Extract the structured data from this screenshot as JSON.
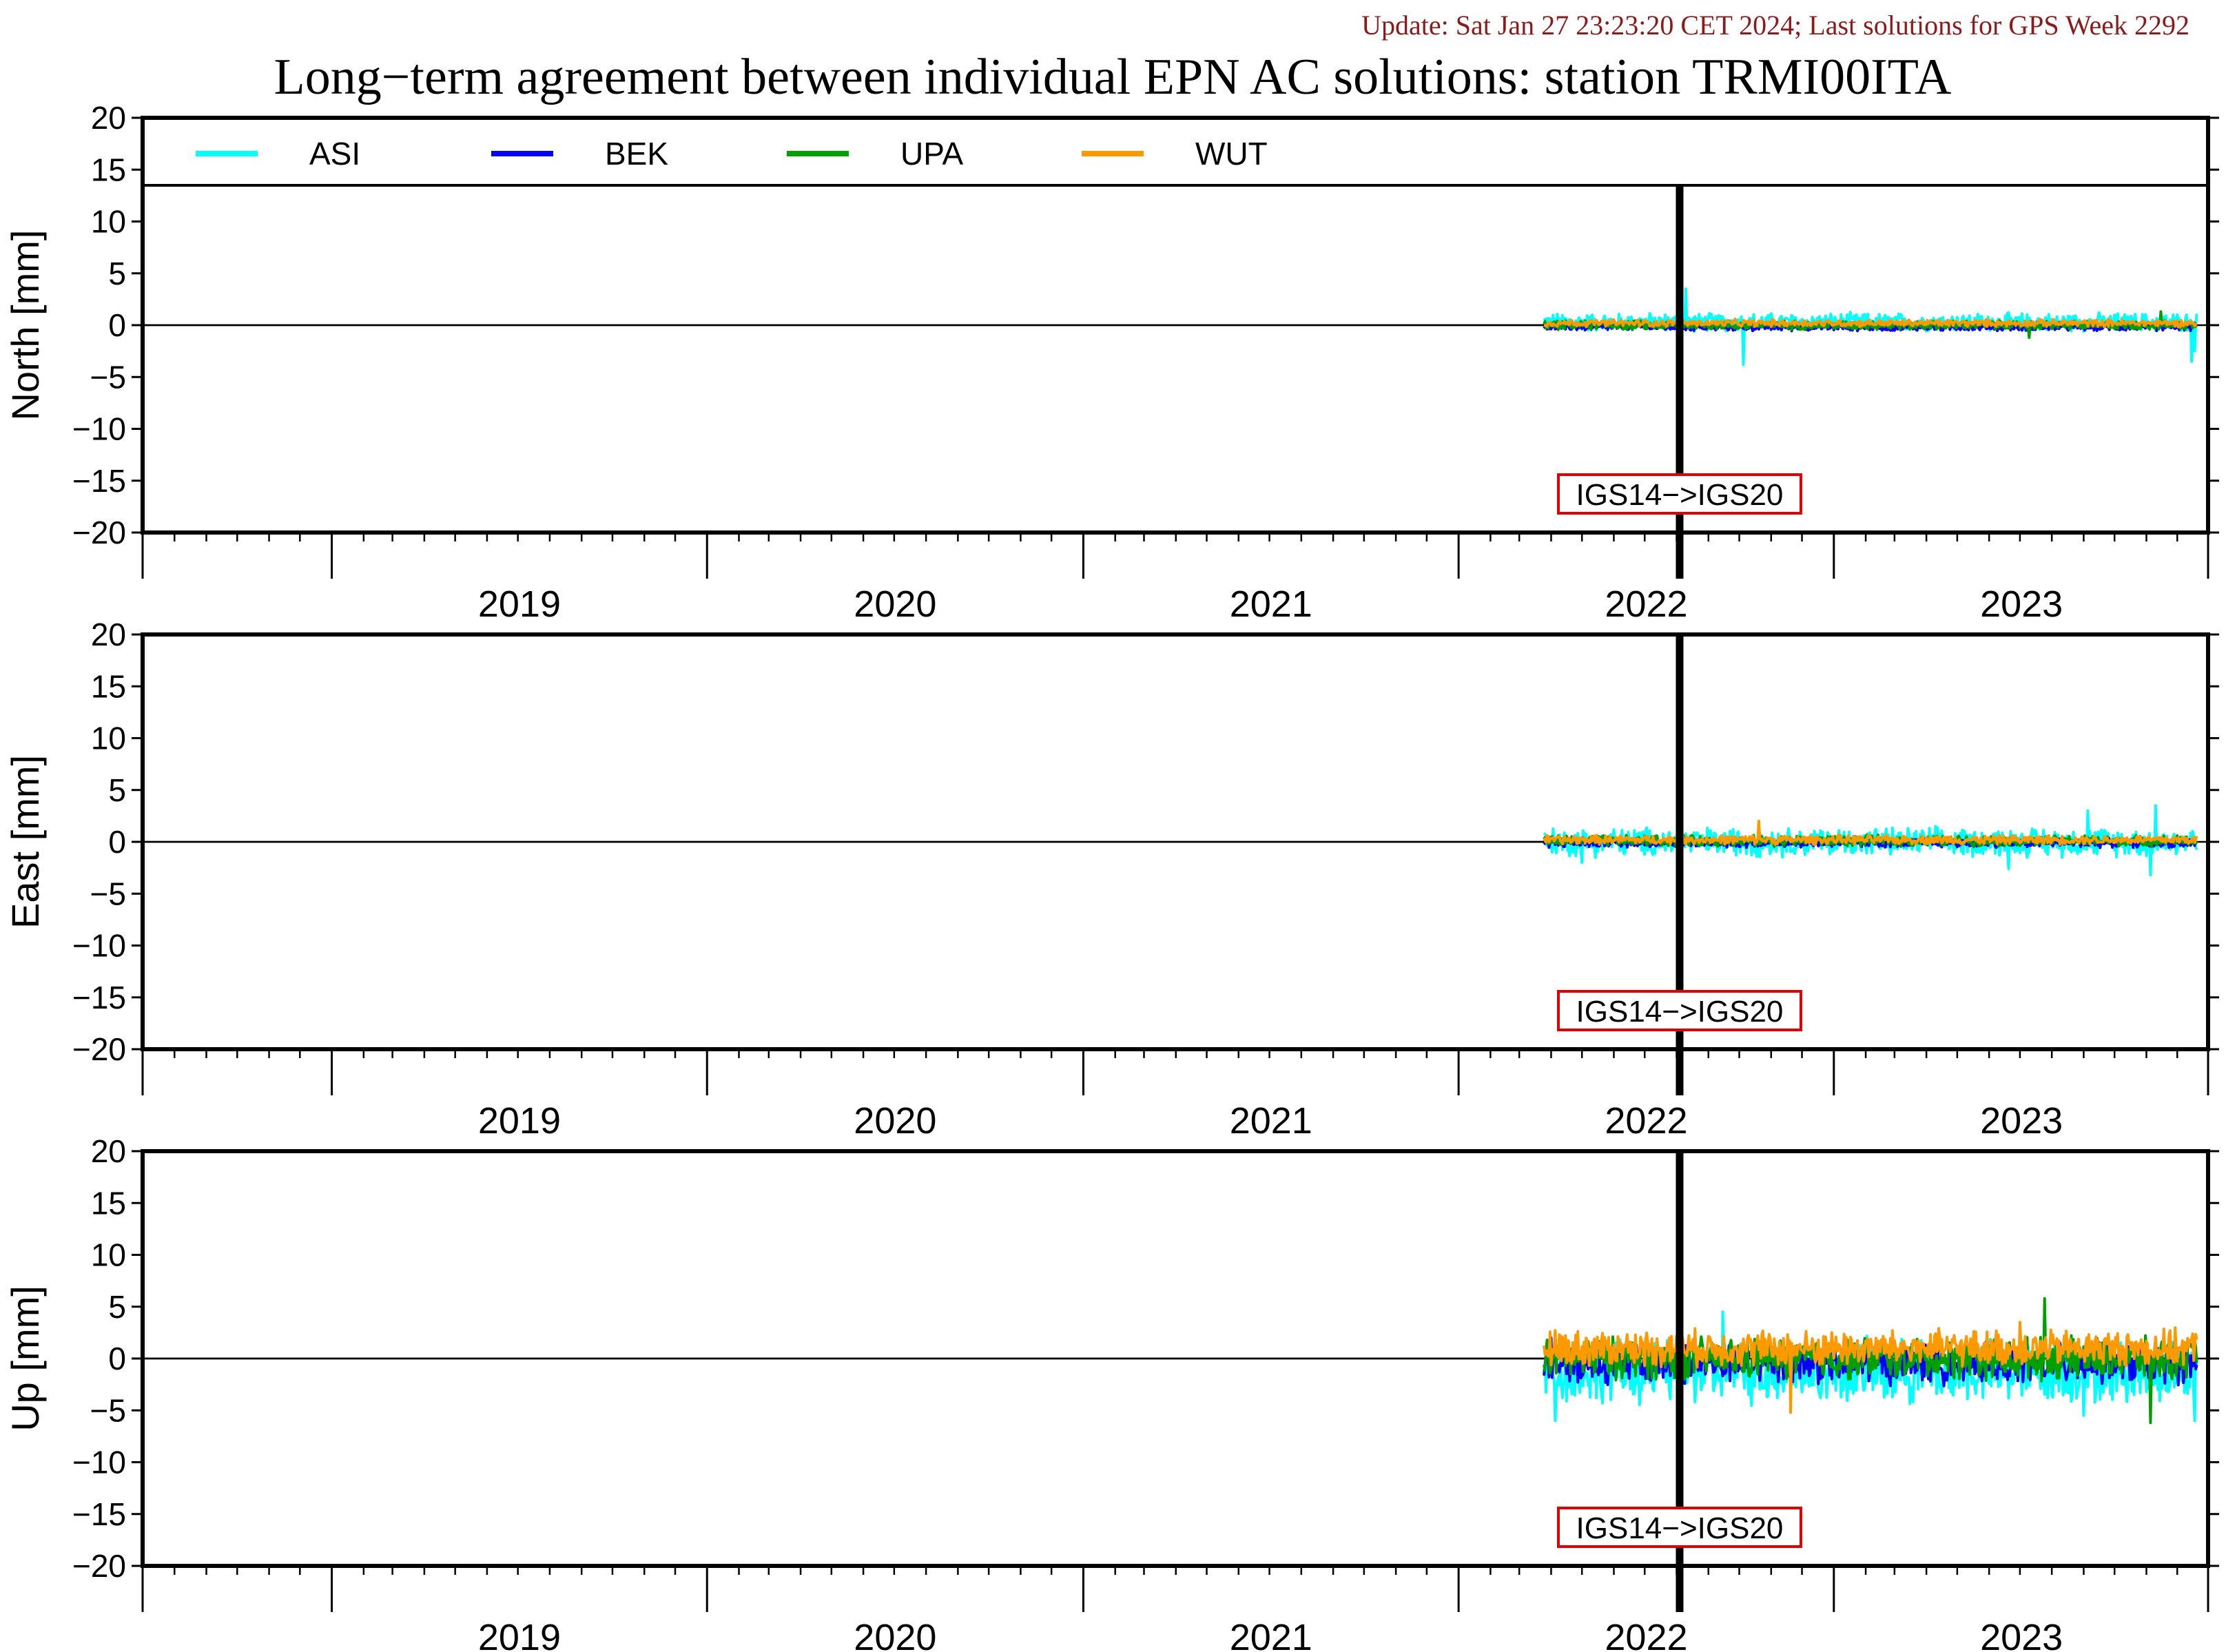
{
  "header": {
    "update_text": "Update: Sat Jan 27 23:23:20 CET 2024; Last solutions for GPS Week 2292",
    "title": "Long−term agreement between individual EPN AC solutions: station TRMI00ITA"
  },
  "colors": {
    "ASI": "#00ffff",
    "BEK": "#0000ff",
    "UPA": "#00a000",
    "WUT": "#ff9900",
    "update_text": "#8b1a1a",
    "annotation_box": "#e00000"
  },
  "chart_data": {
    "type": "line",
    "x_axis": {
      "type": "date",
      "range": [
        "2018-07-01",
        "2023-12-31"
      ],
      "year_labels": [
        "2019",
        "2020",
        "2021",
        "2022",
        "2023"
      ]
    },
    "y_range": [
      -20,
      20
    ],
    "y_ticks": [
      20,
      15,
      10,
      5,
      0,
      -5,
      -10,
      -15,
      -20
    ],
    "y_tick_labels": [
      "20",
      "15",
      "10",
      "5",
      "0",
      "−5",
      "−10",
      "−15",
      "−20"
    ],
    "legend": {
      "placement": "top",
      "entries": [
        "ASI",
        "BEK",
        "UPA",
        "WUT"
      ]
    },
    "series_start": "2022-03-25",
    "series_end": "2023-12-20",
    "annotation": {
      "label": "IGS14−>IGS20",
      "date": "2022-08-04"
    },
    "panels": [
      {
        "ylabel": "North [mm]",
        "series": [
          {
            "name": "ASI",
            "amplitude": 1.0,
            "offset": 0.3,
            "spikes": [
              [
                "2022-08-10",
                3.5
              ],
              [
                "2022-10-05",
                -3.8
              ],
              [
                "2023-12-15",
                -3.5
              ],
              [
                "2023-12-18",
                -2.5
              ]
            ]
          },
          {
            "name": "BEK",
            "amplitude": 0.4,
            "offset": -0.2,
            "spikes": []
          },
          {
            "name": "UPA",
            "amplitude": 0.5,
            "offset": 0.0,
            "spikes": [
              [
                "2023-07-10",
                -1.2
              ],
              [
                "2023-11-15",
                1.3
              ]
            ]
          },
          {
            "name": "WUT",
            "amplitude": 0.4,
            "offset": 0.2,
            "spikes": []
          }
        ]
      },
      {
        "ylabel": "East [mm]",
        "series": [
          {
            "name": "ASI",
            "amplitude": 1.6,
            "offset": 0.0,
            "spikes": [
              [
                "2023-11-10",
                3.5
              ],
              [
                "2023-11-05",
                -3.2
              ],
              [
                "2023-09-05",
                3.0
              ],
              [
                "2022-05-01",
                -2.0
              ],
              [
                "2023-06-20",
                -2.6
              ]
            ]
          },
          {
            "name": "BEK",
            "amplitude": 0.5,
            "offset": -0.1,
            "spikes": []
          },
          {
            "name": "UPA",
            "amplitude": 0.6,
            "offset": 0.1,
            "spikes": []
          },
          {
            "name": "WUT",
            "amplitude": 0.5,
            "offset": 0.2,
            "spikes": [
              [
                "2022-10-20",
                2.0
              ]
            ]
          }
        ]
      },
      {
        "ylabel": "Up [mm]",
        "series": [
          {
            "name": "ASI",
            "amplitude": 3.5,
            "offset": -1.3,
            "spikes": [
              [
                "2022-04-05",
                -6.0
              ],
              [
                "2022-09-15",
                4.5
              ],
              [
                "2023-12-18",
                -6.0
              ],
              [
                "2023-09-01",
                -5.5
              ]
            ]
          },
          {
            "name": "BEK",
            "amplitude": 2.2,
            "offset": -0.5,
            "spikes": [
              [
                "2022-04-01",
                2.0
              ]
            ]
          },
          {
            "name": "UPA",
            "amplitude": 2.3,
            "offset": 0.0,
            "spikes": [
              [
                "2023-07-25",
                5.8
              ],
              [
                "2023-11-05",
                -6.2
              ]
            ]
          },
          {
            "name": "WUT",
            "amplitude": 2.0,
            "offset": 1.0,
            "spikes": [
              [
                "2022-11-20",
                -5.2
              ],
              [
                "2023-07-01",
                3.5
              ]
            ]
          }
        ]
      }
    ]
  }
}
